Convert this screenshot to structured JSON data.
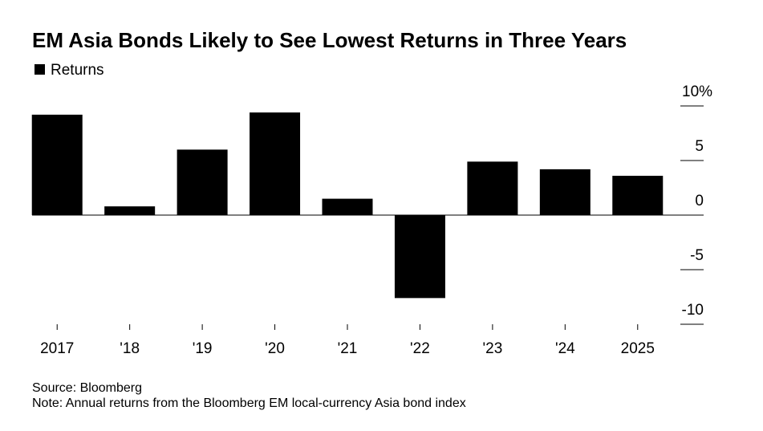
{
  "chart_data": {
    "type": "bar",
    "title": "EM Asia Bonds Likely to See Lowest Returns in Three Years",
    "series": [
      {
        "name": "Returns",
        "color": "#000000",
        "values": [
          9.2,
          0.8,
          6.0,
          9.4,
          1.5,
          -7.6,
          4.9,
          4.2,
          3.6
        ]
      }
    ],
    "categories": [
      "2017",
      "'18",
      "'19",
      "'20",
      "'21",
      "'22",
      "'23",
      "'24",
      "2025"
    ],
    "ylim": [
      -10,
      10
    ],
    "yticks": [
      -10,
      -5,
      0,
      5,
      {
        "value": 10,
        "label": "10%"
      }
    ],
    "source": "Source: Bloomberg",
    "note": "Note: Annual returns from the Bloomberg EM local-currency Asia bond index"
  }
}
